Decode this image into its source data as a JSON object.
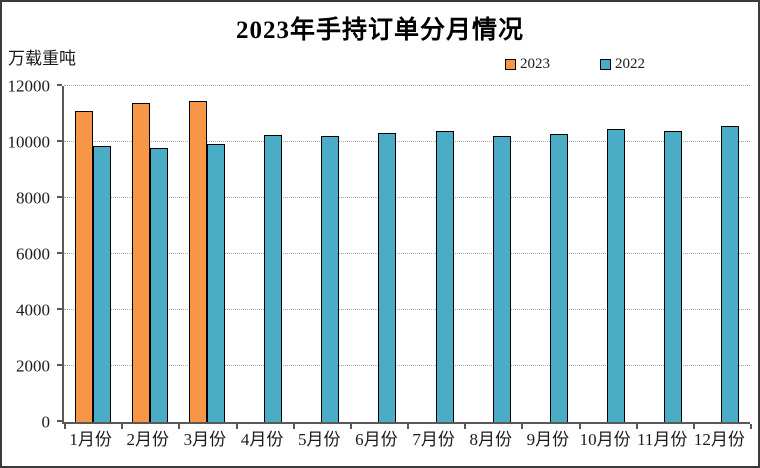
{
  "chart_data": {
    "type": "bar",
    "title": "2023年手持订单分月情况",
    "ylabel": "万载重吨",
    "xlabel": "",
    "categories": [
      "1月份",
      "2月份",
      "3月份",
      "4月份",
      "5月份",
      "6月份",
      "7月份",
      "8月份",
      "9月份",
      "10月份",
      "11月份",
      "12月份"
    ],
    "series": [
      {
        "name": "2023",
        "color": "#F79646",
        "values": [
          11120,
          11390,
          11450,
          null,
          null,
          null,
          null,
          null,
          null,
          null,
          null,
          null
        ]
      },
      {
        "name": "2022",
        "color": "#4BACC6",
        "values": [
          9850,
          9780,
          9920,
          10260,
          10210,
          10330,
          10400,
          10210,
          10300,
          10470,
          10400,
          10560
        ]
      }
    ],
    "ylim": [
      0,
      12000
    ],
    "yticks": [
      0,
      2000,
      4000,
      6000,
      8000,
      10000,
      12000
    ],
    "grid": "horizontal dotted",
    "legend_position": "top",
    "colors": {
      "axis": "#595959",
      "gridline": "#a9a9a9",
      "bar_border": "#000000",
      "frame_border": "#3b3b3b",
      "text": "#1a1a1a"
    }
  }
}
